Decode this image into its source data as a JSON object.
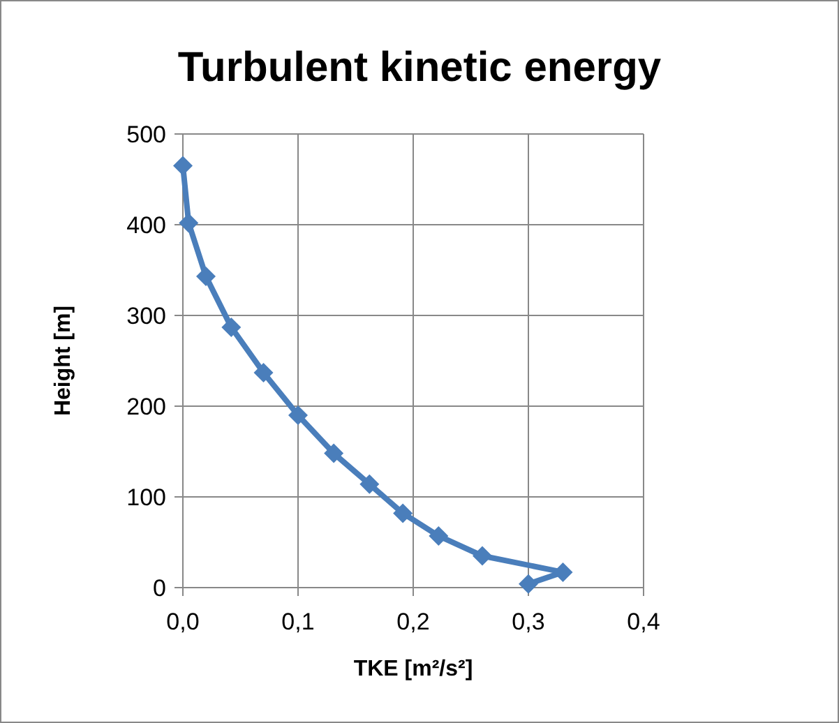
{
  "chart_data": {
    "type": "line",
    "title": "Turbulent kinetic energy",
    "xlabel": "TKE [m²/s²]",
    "ylabel": "Height [m]",
    "x": [
      0,
      0.005,
      0.02,
      0.042,
      0.07,
      0.1,
      0.131,
      0.162,
      0.191,
      0.222,
      0.26,
      0.33,
      0.3
    ],
    "series": [
      {
        "color": "#4a7ebb",
        "values": [
          465,
          402,
          343,
          287,
          237,
          190,
          148,
          114,
          82,
          57,
          35,
          17,
          4
        ]
      }
    ],
    "xlim": [
      0,
      0.4
    ],
    "xticks": [
      {
        "value": 0,
        "label": "0,0"
      },
      {
        "value": 0.1,
        "label": "0,1"
      },
      {
        "value": 0.2,
        "label": "0,2"
      },
      {
        "value": 0.3,
        "label": "0,3"
      },
      {
        "value": 0.4,
        "label": "0,4"
      }
    ],
    "ylim": [
      0,
      500
    ],
    "yticks": [
      0,
      100,
      200,
      300,
      400,
      500
    ],
    "grid": true,
    "marker": "diamond",
    "line_style": "solid"
  }
}
